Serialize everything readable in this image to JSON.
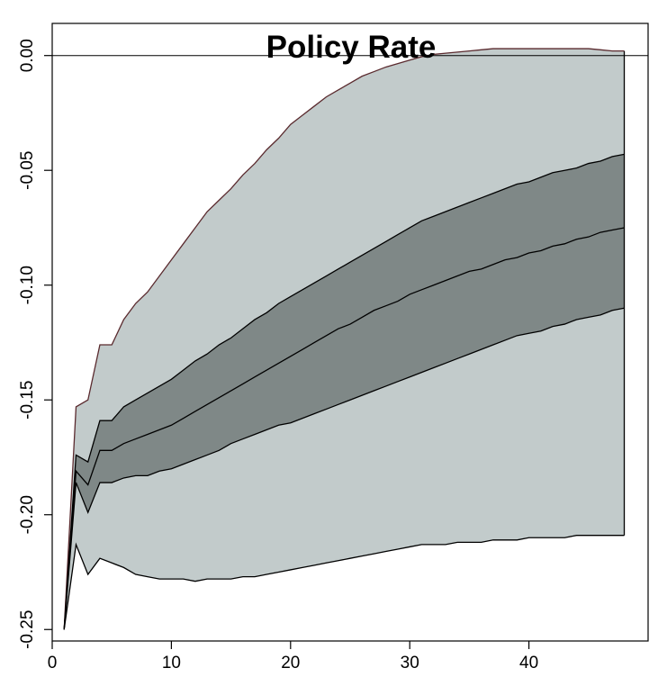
{
  "chart_data": {
    "type": "area",
    "title": "Policy Rate",
    "xlabel": "",
    "ylabel": "",
    "xlim": [
      0,
      50
    ],
    "ylim": [
      -0.255,
      0.014
    ],
    "x_ticks": [
      0,
      10,
      20,
      30,
      40
    ],
    "x_tick_labels": [
      "0",
      "10",
      "20",
      "30",
      "40"
    ],
    "y_ticks": [
      0.0,
      -0.05,
      -0.1,
      -0.15,
      -0.2,
      -0.25
    ],
    "y_tick_labels": [
      "0.00",
      "-0.05",
      "-0.10",
      "-0.15",
      "-0.20",
      "-0.25"
    ],
    "grid": false,
    "zero_line": true,
    "colors": {
      "outer_band": "#c2cbcb",
      "inner_band": "#7f8887",
      "line": "#000000",
      "outer_band_edge": "#5a2a2e"
    },
    "x": [
      1,
      2,
      3,
      4,
      5,
      6,
      7,
      8,
      9,
      10,
      11,
      12,
      13,
      14,
      15,
      16,
      17,
      18,
      19,
      20,
      21,
      22,
      23,
      24,
      25,
      26,
      27,
      28,
      29,
      30,
      31,
      32,
      33,
      34,
      35,
      36,
      37,
      38,
      39,
      40,
      41,
      42,
      43,
      44,
      45,
      46,
      47,
      48
    ],
    "series": [
      {
        "role": "outer_upper",
        "values": [
          -0.25,
          -0.153,
          -0.15,
          -0.126,
          -0.126,
          -0.115,
          -0.108,
          -0.103,
          -0.096,
          -0.089,
          -0.082,
          -0.075,
          -0.068,
          -0.063,
          -0.058,
          -0.052,
          -0.047,
          -0.041,
          -0.036,
          -0.03,
          -0.026,
          -0.022,
          -0.018,
          -0.015,
          -0.012,
          -0.009,
          -0.007,
          -0.005,
          -0.0035,
          -0.002,
          -0.0005,
          0.0005,
          0.001,
          0.0015,
          0.002,
          0.0025,
          0.003,
          0.003,
          0.003,
          0.003,
          0.003,
          0.003,
          0.003,
          0.003,
          0.003,
          0.0025,
          0.002,
          0.002
        ]
      },
      {
        "role": "outer_lower",
        "values": [
          -0.25,
          -0.213,
          -0.226,
          -0.219,
          -0.221,
          -0.223,
          -0.226,
          -0.227,
          -0.228,
          -0.228,
          -0.228,
          -0.229,
          -0.228,
          -0.228,
          -0.228,
          -0.227,
          -0.227,
          -0.226,
          -0.225,
          -0.224,
          -0.223,
          -0.222,
          -0.221,
          -0.22,
          -0.219,
          -0.218,
          -0.217,
          -0.216,
          -0.215,
          -0.214,
          -0.213,
          -0.213,
          -0.213,
          -0.212,
          -0.212,
          -0.212,
          -0.211,
          -0.211,
          -0.211,
          -0.21,
          -0.21,
          -0.21,
          -0.21,
          -0.209,
          -0.209,
          -0.209,
          -0.209,
          -0.209
        ]
      },
      {
        "role": "inner_upper",
        "values": [
          -0.25,
          -0.174,
          -0.177,
          -0.159,
          -0.159,
          -0.153,
          -0.15,
          -0.147,
          -0.144,
          -0.141,
          -0.137,
          -0.133,
          -0.13,
          -0.126,
          -0.123,
          -0.119,
          -0.115,
          -0.112,
          -0.108,
          -0.105,
          -0.102,
          -0.099,
          -0.096,
          -0.093,
          -0.09,
          -0.087,
          -0.084,
          -0.081,
          -0.078,
          -0.075,
          -0.072,
          -0.07,
          -0.068,
          -0.066,
          -0.064,
          -0.062,
          -0.06,
          -0.058,
          -0.056,
          -0.055,
          -0.053,
          -0.051,
          -0.05,
          -0.049,
          -0.047,
          -0.046,
          -0.044,
          -0.043
        ]
      },
      {
        "role": "inner_lower",
        "values": [
          -0.25,
          -0.186,
          -0.199,
          -0.186,
          -0.186,
          -0.184,
          -0.183,
          -0.183,
          -0.181,
          -0.18,
          -0.178,
          -0.176,
          -0.174,
          -0.172,
          -0.169,
          -0.167,
          -0.165,
          -0.163,
          -0.161,
          -0.16,
          -0.158,
          -0.156,
          -0.154,
          -0.152,
          -0.15,
          -0.148,
          -0.146,
          -0.144,
          -0.142,
          -0.14,
          -0.138,
          -0.136,
          -0.134,
          -0.132,
          -0.13,
          -0.128,
          -0.126,
          -0.124,
          -0.122,
          -0.121,
          -0.12,
          -0.118,
          -0.117,
          -0.115,
          -0.114,
          -0.113,
          -0.111,
          -0.11
        ]
      },
      {
        "role": "median",
        "values": [
          -0.25,
          -0.181,
          -0.187,
          -0.172,
          -0.172,
          -0.169,
          -0.167,
          -0.165,
          -0.163,
          -0.161,
          -0.158,
          -0.155,
          -0.152,
          -0.149,
          -0.146,
          -0.143,
          -0.14,
          -0.137,
          -0.134,
          -0.131,
          -0.128,
          -0.125,
          -0.122,
          -0.119,
          -0.117,
          -0.114,
          -0.111,
          -0.109,
          -0.107,
          -0.104,
          -0.102,
          -0.1,
          -0.098,
          -0.096,
          -0.094,
          -0.093,
          -0.091,
          -0.089,
          -0.088,
          -0.086,
          -0.085,
          -0.083,
          -0.082,
          -0.08,
          -0.079,
          -0.077,
          -0.076,
          -0.075
        ]
      }
    ]
  }
}
